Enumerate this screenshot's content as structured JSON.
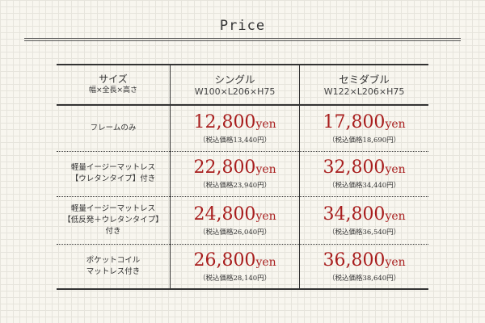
{
  "title": "Price",
  "header": {
    "label": "サイズ",
    "sub": "幅×全長×高さ",
    "cols": [
      {
        "name": "シングル",
        "size": "W100×L206×H75"
      },
      {
        "name": "セミダブル",
        "size": "W122×L206×H75"
      }
    ]
  },
  "unit": "yen",
  "rows": [
    {
      "lines": [
        "フレームのみ"
      ],
      "prices": [
        {
          "price": "12,800",
          "tax": "（税込価格13,440円）"
        },
        {
          "price": "17,800",
          "tax": "（税込価格18,690円）"
        }
      ]
    },
    {
      "lines": [
        "軽量イージーマットレス",
        "【ウレタンタイプ】付き"
      ],
      "prices": [
        {
          "price": "22,800",
          "tax": "（税込価格23,940円）"
        },
        {
          "price": "32,800",
          "tax": "（税込価格34,440円）"
        }
      ]
    },
    {
      "lines": [
        "軽量イージーマットレス",
        "【低反発＋ウレタンタイプ】",
        "付き"
      ],
      "prices": [
        {
          "price": "24,800",
          "tax": "（税込価格26,040円）"
        },
        {
          "price": "34,800",
          "tax": "（税込価格36,540円）"
        }
      ]
    },
    {
      "lines": [
        "ポケットコイル",
        "マットレス付き"
      ],
      "prices": [
        {
          "price": "26,800",
          "tax": "（税込価格28,140円）"
        },
        {
          "price": "36,800",
          "tax": "（税込価格38,640円）"
        }
      ]
    }
  ],
  "colors": {
    "price": "#a81d1d"
  }
}
